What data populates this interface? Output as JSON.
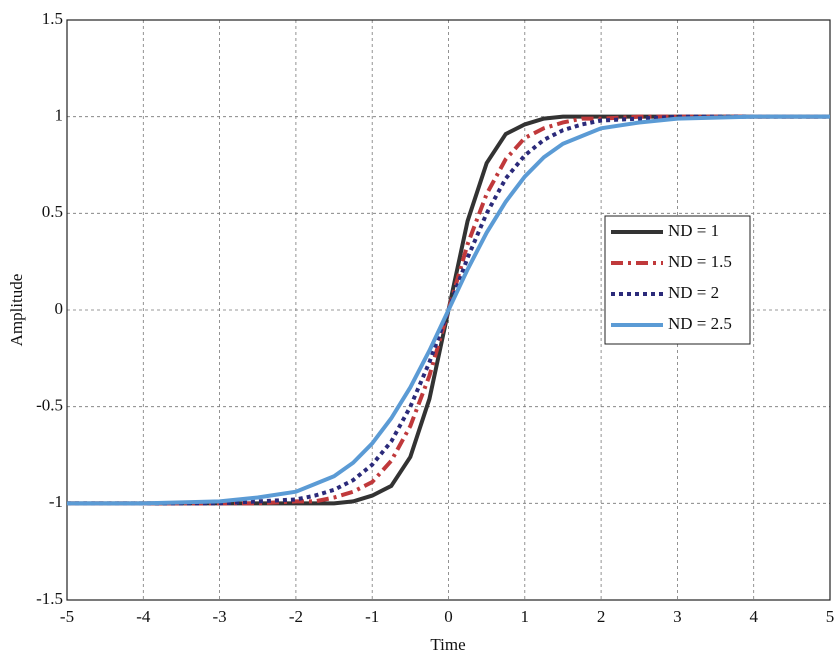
{
  "chart_data": {
    "type": "line",
    "x_label": "Time",
    "y_label": "Amplitude",
    "x": [
      -5,
      -4,
      -3,
      -2.5,
      -2,
      -1.75,
      -1.5,
      -1.25,
      -1,
      -0.75,
      -0.5,
      -0.25,
      0,
      0.25,
      0.5,
      0.75,
      1,
      1.25,
      1.5,
      1.75,
      2,
      2.5,
      3,
      4,
      5
    ],
    "series": [
      {
        "name": "ND = 1",
        "color": "#333333",
        "style": "solid",
        "values": [
          -1,
          -1,
          -1,
          -1,
          -1,
          -1,
          -1,
          -0.99,
          -0.96,
          -0.91,
          -0.76,
          -0.46,
          0,
          0.46,
          0.76,
          0.91,
          0.96,
          0.99,
          1,
          1,
          1,
          1,
          1,
          1,
          1
        ]
      },
      {
        "name": "ND = 1.5",
        "color": "#c0393b",
        "style": "dashdot",
        "values": [
          -1,
          -1,
          -1,
          -1,
          -0.99,
          -0.99,
          -0.97,
          -0.94,
          -0.89,
          -0.78,
          -0.6,
          -0.34,
          0,
          0.34,
          0.6,
          0.78,
          0.89,
          0.94,
          0.97,
          0.99,
          0.99,
          1,
          1,
          1,
          1
        ]
      },
      {
        "name": "ND = 2",
        "color": "#2b2a7a",
        "style": "dotted",
        "values": [
          -1,
          -1,
          -1,
          -0.99,
          -0.98,
          -0.96,
          -0.93,
          -0.88,
          -0.8,
          -0.68,
          -0.5,
          -0.27,
          0,
          0.27,
          0.5,
          0.68,
          0.8,
          0.88,
          0.93,
          0.96,
          0.98,
          0.99,
          1,
          1,
          1
        ]
      },
      {
        "name": "ND = 2.5",
        "color": "#5b9bd5",
        "style": "solid",
        "values": [
          -1,
          -1,
          -0.99,
          -0.97,
          -0.94,
          -0.9,
          -0.86,
          -0.79,
          -0.69,
          -0.56,
          -0.4,
          -0.21,
          0,
          0.21,
          0.4,
          0.56,
          0.69,
          0.79,
          0.86,
          0.9,
          0.94,
          0.97,
          0.99,
          1,
          1
        ]
      }
    ],
    "xlim": [
      -5,
      5
    ],
    "ylim": [
      -1.5,
      1.5
    ],
    "xticks": [
      -5,
      -4,
      -3,
      -2,
      -1,
      0,
      1,
      2,
      3,
      4,
      5
    ],
    "yticks": [
      -1.5,
      -1,
      -0.5,
      0,
      0.5,
      1,
      1.5
    ],
    "grid": true,
    "legend": "right"
  }
}
